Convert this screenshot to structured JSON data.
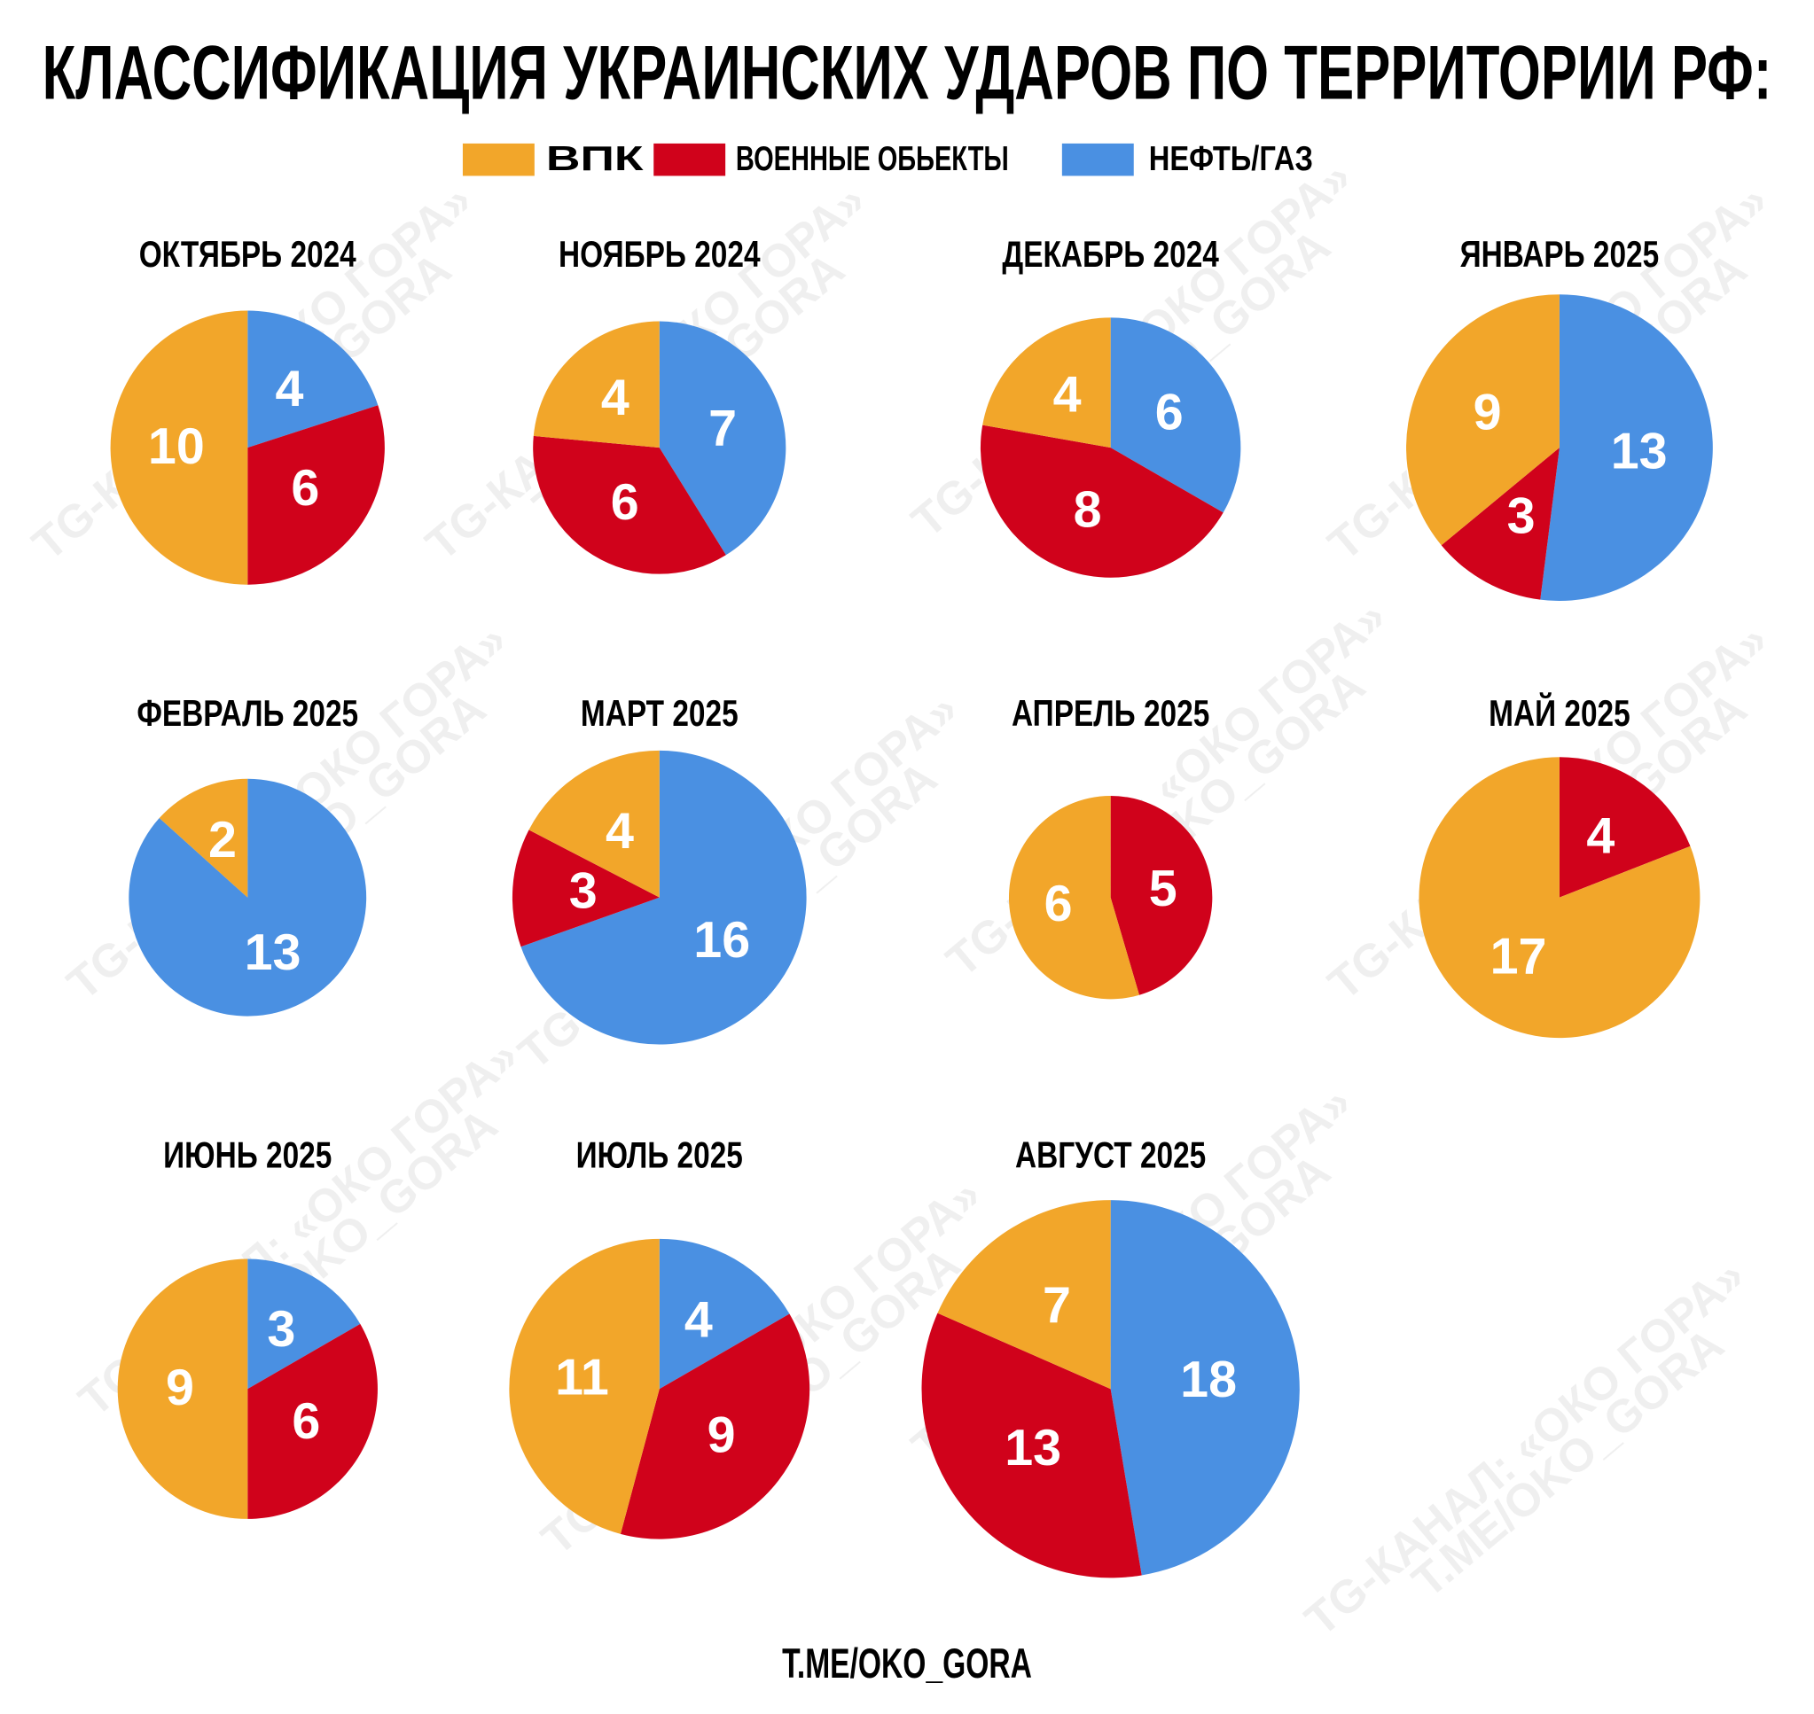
{
  "title": "КЛАССИФИКАЦИЯ  УКРАИНСКИХ УДАРОВ ПО ТЕРРИТОРИИ РФ:",
  "legend": [
    {
      "name": "ВПК",
      "color": "#F2A62A"
    },
    {
      "name": "ВОЕННЫЕ ОБЬЕКТЫ",
      "color": "#D0021B"
    },
    {
      "name": "НЕФТЬ/ГАЗ",
      "color": "#4A90E2"
    }
  ],
  "watermark": "TG-КАНАЛ: «ОКО ГОРА»",
  "footer": "T.ME/OKO_GORA",
  "chart_data": [
    {
      "type": "pie",
      "title": "ОКТЯБРЬ 2024",
      "categories": [
        "ВПК",
        "ВОЕННЫЕ ОБЬЕКТЫ",
        "НЕФТЬ/ГАЗ"
      ],
      "values": [
        10,
        6,
        4
      ],
      "colors": [
        "#F2A62A",
        "#D0021B",
        "#4A90E2"
      ]
    },
    {
      "type": "pie",
      "title": "НОЯБРЬ 2024",
      "categories": [
        "ВПК",
        "ВОЕННЫЕ ОБЬЕКТЫ",
        "НЕФТЬ/ГАЗ"
      ],
      "values": [
        4,
        6,
        7
      ],
      "colors": [
        "#F2A62A",
        "#D0021B",
        "#4A90E2"
      ]
    },
    {
      "type": "pie",
      "title": "ДЕКАБРЬ 2024",
      "categories": [
        "ВПК",
        "ВОЕННЫЕ ОБЬЕКТЫ",
        "НЕФТЬ/ГАЗ"
      ],
      "values": [
        4,
        8,
        6
      ],
      "colors": [
        "#F2A62A",
        "#D0021B",
        "#4A90E2"
      ]
    },
    {
      "type": "pie",
      "title": "ЯНВАРЬ 2025",
      "categories": [
        "ВПК",
        "ВОЕННЫЕ ОБЬЕКТЫ",
        "НЕФТЬ/ГАЗ"
      ],
      "values": [
        9,
        3,
        13
      ],
      "colors": [
        "#F2A62A",
        "#D0021B",
        "#4A90E2"
      ]
    },
    {
      "type": "pie",
      "title": "ФЕВРАЛЬ 2025",
      "categories": [
        "ВПК",
        "ВОЕННЫЕ ОБЬЕКТЫ",
        "НЕФТЬ/ГАЗ"
      ],
      "values": [
        2,
        null,
        13
      ],
      "colors": [
        "#F2A62A",
        "#D0021B",
        "#4A90E2"
      ]
    },
    {
      "type": "pie",
      "title": "МАРТ 2025",
      "categories": [
        "ВПК",
        "ВОЕННЫЕ ОБЬЕКТЫ",
        "НЕФТЬ/ГАЗ"
      ],
      "values": [
        4,
        3,
        16
      ],
      "colors": [
        "#F2A62A",
        "#D0021B",
        "#4A90E2"
      ]
    },
    {
      "type": "pie",
      "title": "АПРЕЛЬ 2025",
      "categories": [
        "ВПК",
        "ВОЕННЫЕ ОБЬЕКТЫ",
        "НЕФТЬ/ГАЗ"
      ],
      "values": [
        6,
        5,
        null
      ],
      "colors": [
        "#F2A62A",
        "#D0021B",
        "#4A90E2"
      ]
    },
    {
      "type": "pie",
      "title": "МАЙ 2025",
      "categories": [
        "ВПК",
        "ВОЕННЫЕ ОБЬЕКТЫ",
        "НЕФТЬ/ГАЗ"
      ],
      "values": [
        17,
        4,
        null
      ],
      "colors": [
        "#F2A62A",
        "#D0021B",
        "#4A90E2"
      ]
    },
    {
      "type": "pie",
      "title": "ИЮНЬ 2025",
      "categories": [
        "ВПК",
        "ВОЕННЫЕ ОБЬЕКТЫ",
        "НЕФТЬ/ГАЗ"
      ],
      "values": [
        9,
        6,
        3
      ],
      "colors": [
        "#F2A62A",
        "#D0021B",
        "#4A90E2"
      ]
    },
    {
      "type": "pie",
      "title": "ИЮЛЬ 2025",
      "categories": [
        "ВПК",
        "ВОЕННЫЕ ОБЬЕКТЫ",
        "НЕФТЬ/ГАЗ"
      ],
      "values": [
        11,
        9,
        4
      ],
      "colors": [
        "#F2A62A",
        "#D0021B",
        "#4A90E2"
      ]
    },
    {
      "type": "pie",
      "title": "АВГУСТ 2025",
      "categories": [
        "ВПК",
        "ВОЕННЫЕ ОБЬЕКТЫ",
        "НЕФТЬ/ГАЗ"
      ],
      "values": [
        7,
        13,
        18
      ],
      "colors": [
        "#F2A62A",
        "#D0021B",
        "#4A90E2"
      ]
    }
  ]
}
